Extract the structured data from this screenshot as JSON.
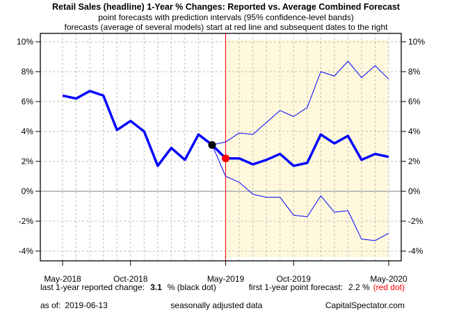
{
  "chart_data": {
    "type": "line",
    "title": "Retail Sales (headline) 1-Year % Changes: Reported vs. Average Combined Forecast",
    "subtitle_1": "point forecasts with prediction intervals (95% confidence-level bands)",
    "subtitle_2": "forecasts (average of several models) start at red line and subsequent dates to the right",
    "ylim": [
      -4,
      10
    ],
    "y_ticks": [
      "-4%",
      "-2%",
      "0%",
      "2%",
      "4%",
      "6%",
      "8%",
      "10%"
    ],
    "y_tick_values": [
      -4,
      -2,
      0,
      2,
      4,
      6,
      8,
      10
    ],
    "x_tick_labels": [
      "May-2018",
      "Oct-2018",
      "May-2019",
      "Oct-2019",
      "May-2020"
    ],
    "x_tick_month_index": [
      0,
      5,
      12,
      17,
      24
    ],
    "months": [
      "2018-05",
      "2018-06",
      "2018-07",
      "2018-08",
      "2018-09",
      "2018-10",
      "2018-11",
      "2018-12",
      "2019-01",
      "2019-02",
      "2019-03",
      "2019-04",
      "2019-05",
      "2019-06",
      "2019-07",
      "2019-08",
      "2019-09",
      "2019-10",
      "2019-11",
      "2019-12",
      "2020-01",
      "2020-02",
      "2020-03",
      "2020-04",
      "2020-05"
    ],
    "grid": true,
    "forecast_start": "2019-05",
    "series": [
      {
        "role": "reported",
        "values": [
          6.4,
          6.2,
          6.7,
          6.4,
          4.1,
          4.7,
          4.0,
          1.7,
          2.9,
          2.1,
          3.8,
          3.1,
          null,
          null,
          null,
          null,
          null,
          null,
          null,
          null,
          null,
          null,
          null,
          null,
          null
        ]
      },
      {
        "role": "forecast",
        "values": [
          null,
          null,
          null,
          null,
          null,
          null,
          null,
          null,
          null,
          null,
          null,
          3.1,
          2.2,
          2.2,
          1.8,
          2.1,
          2.5,
          1.7,
          1.9,
          3.8,
          3.2,
          3.7,
          2.1,
          2.5,
          2.3
        ]
      },
      {
        "role": "upper-band",
        "values": [
          null,
          null,
          null,
          null,
          null,
          null,
          null,
          null,
          null,
          null,
          null,
          3.1,
          3.3,
          3.9,
          3.8,
          4.6,
          5.4,
          5.0,
          5.6,
          8.0,
          7.7,
          8.7,
          7.6,
          8.4,
          7.5
        ]
      },
      {
        "role": "lower-band",
        "values": [
          null,
          null,
          null,
          null,
          null,
          null,
          null,
          null,
          null,
          null,
          null,
          3.1,
          1.0,
          0.6,
          -0.2,
          -0.4,
          -0.4,
          -1.6,
          -1.7,
          -0.3,
          -1.4,
          -1.3,
          -3.2,
          -3.3,
          -2.8
        ]
      }
    ],
    "colors": {
      "line": "#0000ff",
      "forecast_line": "#ff0000",
      "shade": "#fff8dc",
      "black_dot": "#000000",
      "red_dot": "#ff0000",
      "zero_line": "#bebebe",
      "grid": "#bebebe"
    }
  },
  "footer": {
    "reported_label": "last 1-year reported change:",
    "reported_value": "3.1",
    "reported_suffix": "% (black dot)",
    "forecast_label": "first 1-year point forecast:",
    "forecast_value": "2.2 %",
    "forecast_suffix": "(red dot)",
    "asof_label": "as of:",
    "asof_value": "2019-06-13",
    "seasonal": "seasonally adjusted data",
    "source": "CapitalSpectator.com"
  }
}
